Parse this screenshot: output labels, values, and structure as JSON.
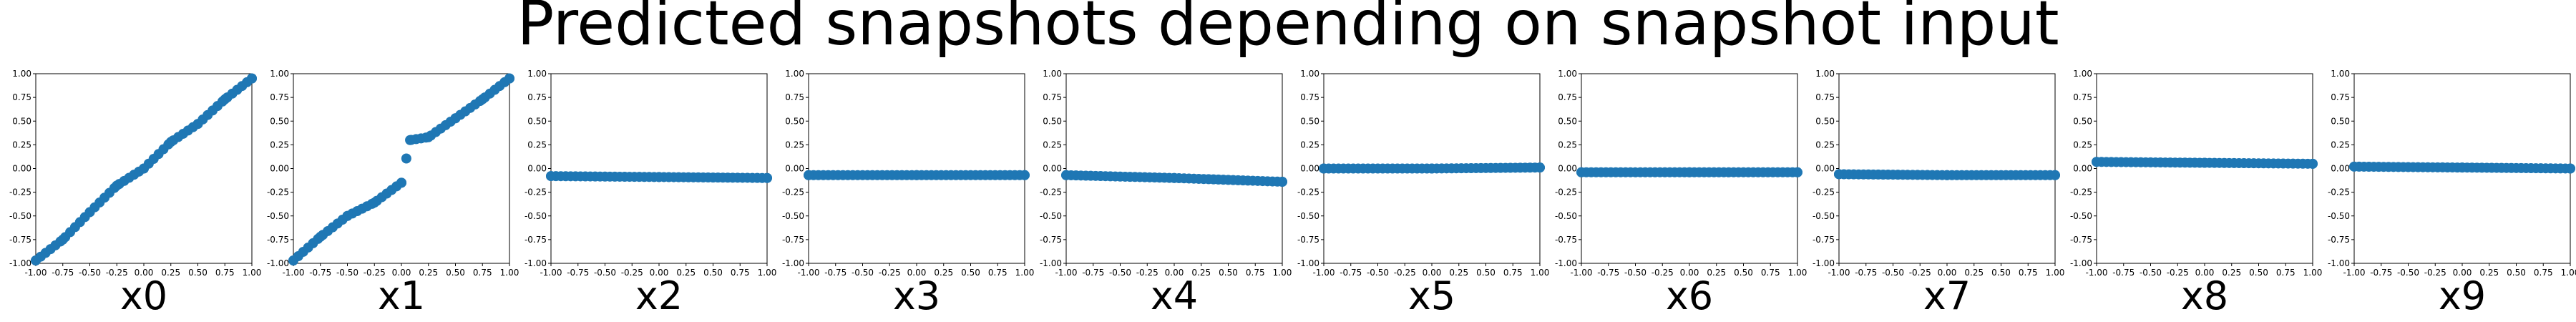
{
  "title": "Predicted snapshots depending on snapshot input",
  "chart_data": {
    "type": "scatter",
    "marker_color": "#1f77b4",
    "xlim": [
      -1.0,
      1.0
    ],
    "ylim": [
      -1.0,
      1.0
    ],
    "xtick_labels": [
      "-1.00",
      "-0.75",
      "-0.50",
      "-0.25",
      "0.00",
      "0.25",
      "0.50",
      "0.75",
      "1.00"
    ],
    "ytick_labels": [
      "-1.00",
      "-0.75",
      "-0.50",
      "-0.25",
      "0.00",
      "0.25",
      "0.50",
      "0.75",
      "1.00"
    ],
    "panels": [
      {
        "xlabel": "x0",
        "x": [
          -1.0,
          -0.75,
          -0.5,
          -0.25,
          0.0,
          0.25,
          0.5,
          0.75,
          1.0
        ],
        "y": [
          -0.97,
          -0.75,
          -0.46,
          -0.18,
          0.0,
          0.28,
          0.47,
          0.73,
          0.95
        ]
      },
      {
        "xlabel": "x1",
        "x": [
          -1.0,
          -0.75,
          -0.5,
          -0.25,
          0.0,
          0.08,
          0.25,
          0.5,
          0.75,
          1.0
        ],
        "y": [
          -0.97,
          -0.72,
          -0.5,
          -0.36,
          -0.15,
          0.3,
          0.33,
          0.53,
          0.73,
          0.95
        ]
      },
      {
        "xlabel": "x2",
        "x": [
          -1.0,
          0.0,
          1.0
        ],
        "y": [
          -0.08,
          -0.09,
          -0.1
        ]
      },
      {
        "xlabel": "x3",
        "x": [
          -1.0,
          0.0,
          1.0
        ],
        "y": [
          -0.07,
          -0.07,
          -0.07
        ]
      },
      {
        "xlabel": "x4",
        "x": [
          -1.0,
          0.0,
          1.0
        ],
        "y": [
          -0.07,
          -0.1,
          -0.14
        ]
      },
      {
        "xlabel": "x5",
        "x": [
          -1.0,
          0.0,
          1.0
        ],
        "y": [
          0.0,
          0.0,
          0.01
        ]
      },
      {
        "xlabel": "x6",
        "x": [
          -1.0,
          0.0,
          1.0
        ],
        "y": [
          -0.04,
          -0.04,
          -0.04
        ]
      },
      {
        "xlabel": "x7",
        "x": [
          -1.0,
          0.0,
          1.0
        ],
        "y": [
          -0.06,
          -0.07,
          -0.07
        ]
      },
      {
        "xlabel": "x8",
        "x": [
          -1.0,
          0.0,
          1.0
        ],
        "y": [
          0.07,
          0.06,
          0.05
        ]
      },
      {
        "xlabel": "x9",
        "x": [
          -1.0,
          0.0,
          1.0
        ],
        "y": [
          0.02,
          0.01,
          0.0
        ]
      }
    ]
  }
}
